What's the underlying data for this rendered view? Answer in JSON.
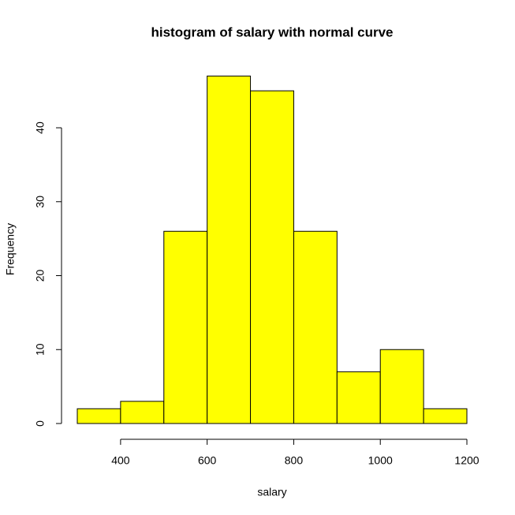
{
  "chart_data": {
    "type": "histogram",
    "title": "histogram of salary with normal curve",
    "x_label": "salary",
    "y_label": "Frequency",
    "bins": [
      300,
      400,
      500,
      600,
      700,
      800,
      900,
      1000,
      1100,
      1200
    ],
    "values": [
      2,
      3,
      26,
      47,
      45,
      26,
      7,
      10,
      2
    ],
    "color": "#ffff00",
    "xlim": [
      300,
      1200
    ],
    "ylim": [
      0,
      47
    ],
    "xticks": [
      400,
      600,
      800,
      1000,
      1200
    ],
    "yticks": [
      0,
      10,
      20,
      30,
      40
    ]
  }
}
